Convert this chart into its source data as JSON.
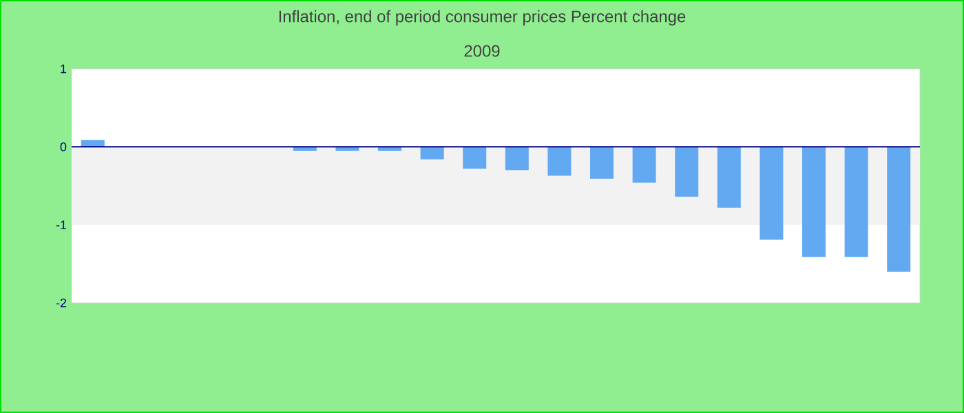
{
  "chart_data": {
    "type": "bar",
    "title": "Inflation, end of period consumer prices  Percent change",
    "subtitle": "2009",
    "categories": [
      null,
      null,
      null,
      null,
      null,
      null,
      null,
      null,
      null,
      null,
      null,
      null,
      null,
      null,
      null,
      null,
      null,
      null,
      null,
      null
    ],
    "values": [
      0.09,
      0,
      0,
      0,
      0,
      -0.05,
      -0.05,
      -0.05,
      -0.16,
      -0.28,
      -0.3,
      -0.37,
      -0.41,
      -0.46,
      -0.64,
      -0.78,
      -1.19,
      -1.41,
      -1.41,
      -1.6
    ],
    "color": "#63a9f2",
    "ylim": [
      -2,
      1
    ],
    "yticks": [
      -2,
      -1,
      0,
      1
    ],
    "tick_labels": "y",
    "bands": [
      {
        "axis": "y",
        "from": -1,
        "to": 0,
        "color": "#f2f2f2"
      }
    ],
    "ref_lines": [
      {
        "axis": "y",
        "value": 0,
        "color": "#000080"
      }
    ],
    "grid": false
  }
}
